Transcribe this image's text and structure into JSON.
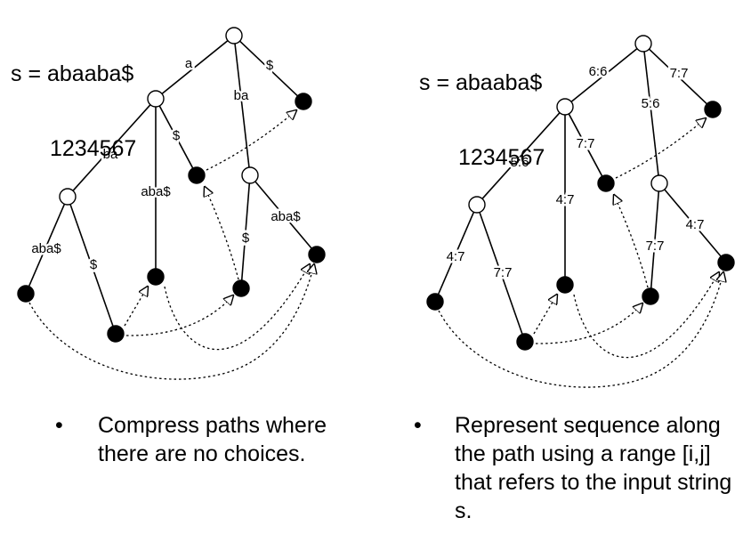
{
  "left": {
    "header": {
      "equation": "s = abaaba$",
      "indices": "1234567"
    },
    "edge_labels": {
      "root_a": "a",
      "root_ba": "ba",
      "root_dollar": "$",
      "a_ba": "ba",
      "a_aba": "aba$",
      "a_dollar": "$",
      "aba_aba": "aba$",
      "aba_dollar": "$",
      "ba_dollar": "$",
      "ba_aba": "aba$"
    },
    "bullet": "Compress paths where there are no choices."
  },
  "right": {
    "header": {
      "equation": "s = abaaba$",
      "indices": "1234567"
    },
    "edge_labels": {
      "root_a": "6:6",
      "root_ba": "5:6",
      "root_dollar": "7:7",
      "a_ba": "5:6",
      "a_aba": "4:7",
      "a_dollar": "7:7",
      "aba_aba": "4:7",
      "aba_dollar": "7:7",
      "ba_dollar": "7:7",
      "ba_aba": "4:7"
    },
    "bullet": "Represent sequence along the path using a range [i,j] that refers to the input string s."
  },
  "colors": {
    "line": "#000000",
    "internal_node": "#ffffff",
    "leaf_node": "#000000"
  }
}
